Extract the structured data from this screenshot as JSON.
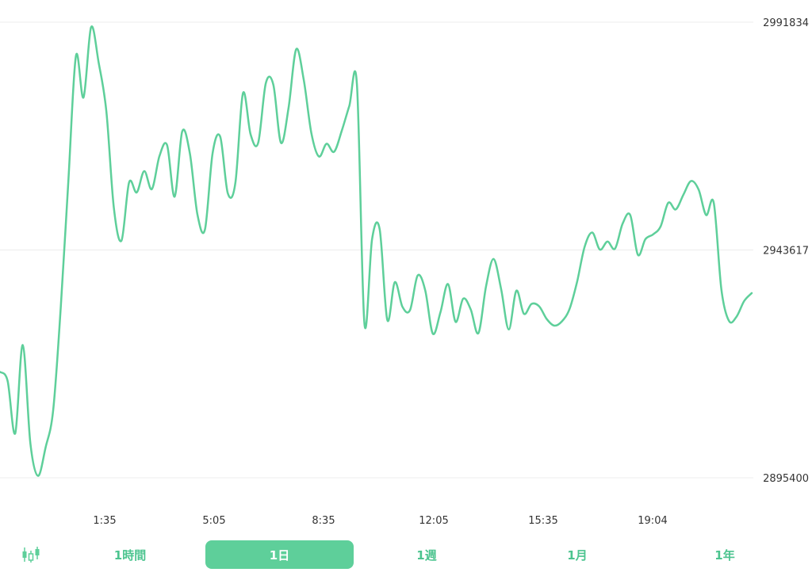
{
  "colors": {
    "accent": "#5ecf9a",
    "accent_text": "#4cc48f",
    "grid": "#ececec",
    "text": "#333333"
  },
  "chart_data": {
    "type": "line",
    "x_tick_labels": [
      "1:35",
      "5:05",
      "8:35",
      "12:05",
      "15:35",
      "19:04"
    ],
    "y_tick_labels": [
      "2991834",
      "2943617",
      "2895400"
    ],
    "ylim": [
      2895400,
      2991834
    ],
    "grid": "horizontal",
    "series": [
      {
        "values": [
          2917800,
          2915900,
          2904800,
          2923500,
          2902700,
          2895800,
          2901800,
          2909600,
          2931400,
          2958200,
          2984700,
          2975900,
          2990800,
          2983200,
          2973000,
          2952500,
          2945600,
          2957900,
          2955800,
          2960300,
          2956500,
          2963500,
          2965800,
          2954900,
          2968700,
          2964100,
          2951100,
          2948000,
          2964100,
          2967600,
          2955600,
          2957800,
          2976800,
          2968100,
          2966300,
          2978900,
          2978600,
          2966300,
          2973700,
          2986100,
          2979700,
          2968400,
          2963400,
          2966100,
          2964400,
          2968800,
          2974100,
          2978700,
          2928000,
          2945900,
          2948000,
          2928800,
          2936800,
          2931600,
          2930900,
          2938200,
          2935100,
          2925900,
          2930400,
          2936400,
          2928400,
          2933300,
          2931000,
          2926000,
          2935800,
          2941700,
          2935300,
          2926800,
          2935000,
          2930100,
          2932200,
          2931700,
          2929000,
          2927600,
          2928500,
          2931100,
          2936900,
          2944300,
          2947300,
          2943700,
          2945400,
          2943900,
          2949200,
          2951000,
          2942600,
          2945900,
          2946900,
          2948600,
          2953600,
          2952200,
          2955300,
          2958200,
          2956400,
          2951000,
          2953600,
          2935300,
          2928600,
          2929500,
          2932800,
          2934500
        ]
      }
    ]
  },
  "periods": {
    "candle_toggle": "candlestick-icon",
    "items": [
      "1時間",
      "1日",
      "1週",
      "1月",
      "1年"
    ],
    "selected": "1日"
  }
}
